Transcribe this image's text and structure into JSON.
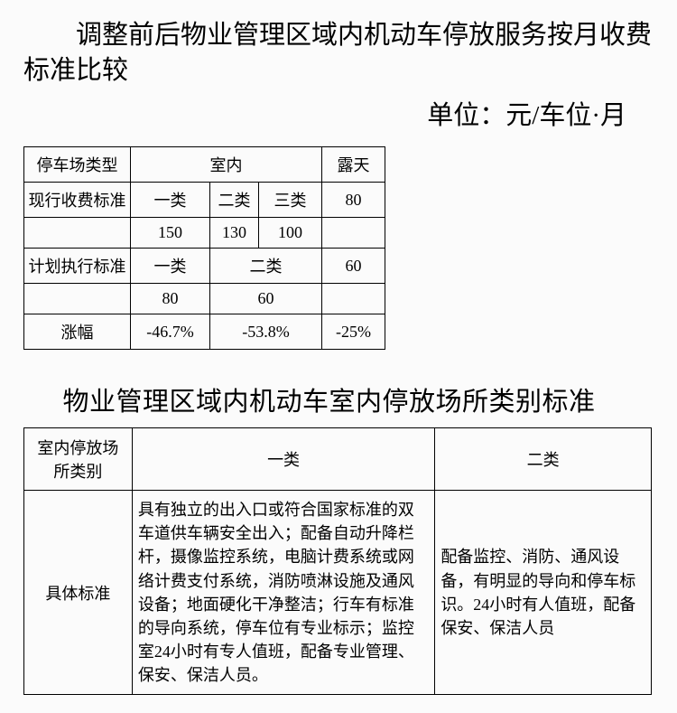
{
  "title1": "调整前后物业管理区域内机动车停放服务按月收费标准比较",
  "unit": "单位：元/车位·月",
  "table1": {
    "r1c1": "停车场类型",
    "r1c2": "室内",
    "r1c3": "露天",
    "r2c1": "现行收费标准",
    "r2c2": "一类",
    "r2c3": "二类",
    "r2c4": "三类",
    "r2c5": "80",
    "r3c1": "",
    "r3c2": "150",
    "r3c3": "130",
    "r3c4": "100",
    "r3c5": "",
    "r4c1": "计划执行标准",
    "r4c2": "一类",
    "r4c3": "二类",
    "r4c4": "60",
    "r5c1": "",
    "r5c2": "80",
    "r5c3": "60",
    "r5c4": "",
    "r6c1": "涨幅",
    "r6c2": "-46.7%",
    "r6c3": "-53.8%",
    "r6c4": "-25%"
  },
  "title2": "物业管理区域内机动车室内停放场所类别标准",
  "table2": {
    "h1": "室内停放场所类别",
    "h2": "一类",
    "h3": "二类",
    "r1": "具体标准",
    "c1": "具有独立的出入口或符合国家标准的双车道供车辆安全出入；配备自动升降栏杆，摄像监控系统，电脑计费系统或网络计费支付系统，消防喷淋设施及通风设备；地面硬化干净整洁；行车有标准的导向系统，停车位有专业标示；监控室24小时有专人值班，配备专业管理、保安、保洁人员。",
    "c2": "配备监控、消防、通风设备，有明显的导向和停车标识。24小时有人值班，配备保安、保洁人员"
  }
}
